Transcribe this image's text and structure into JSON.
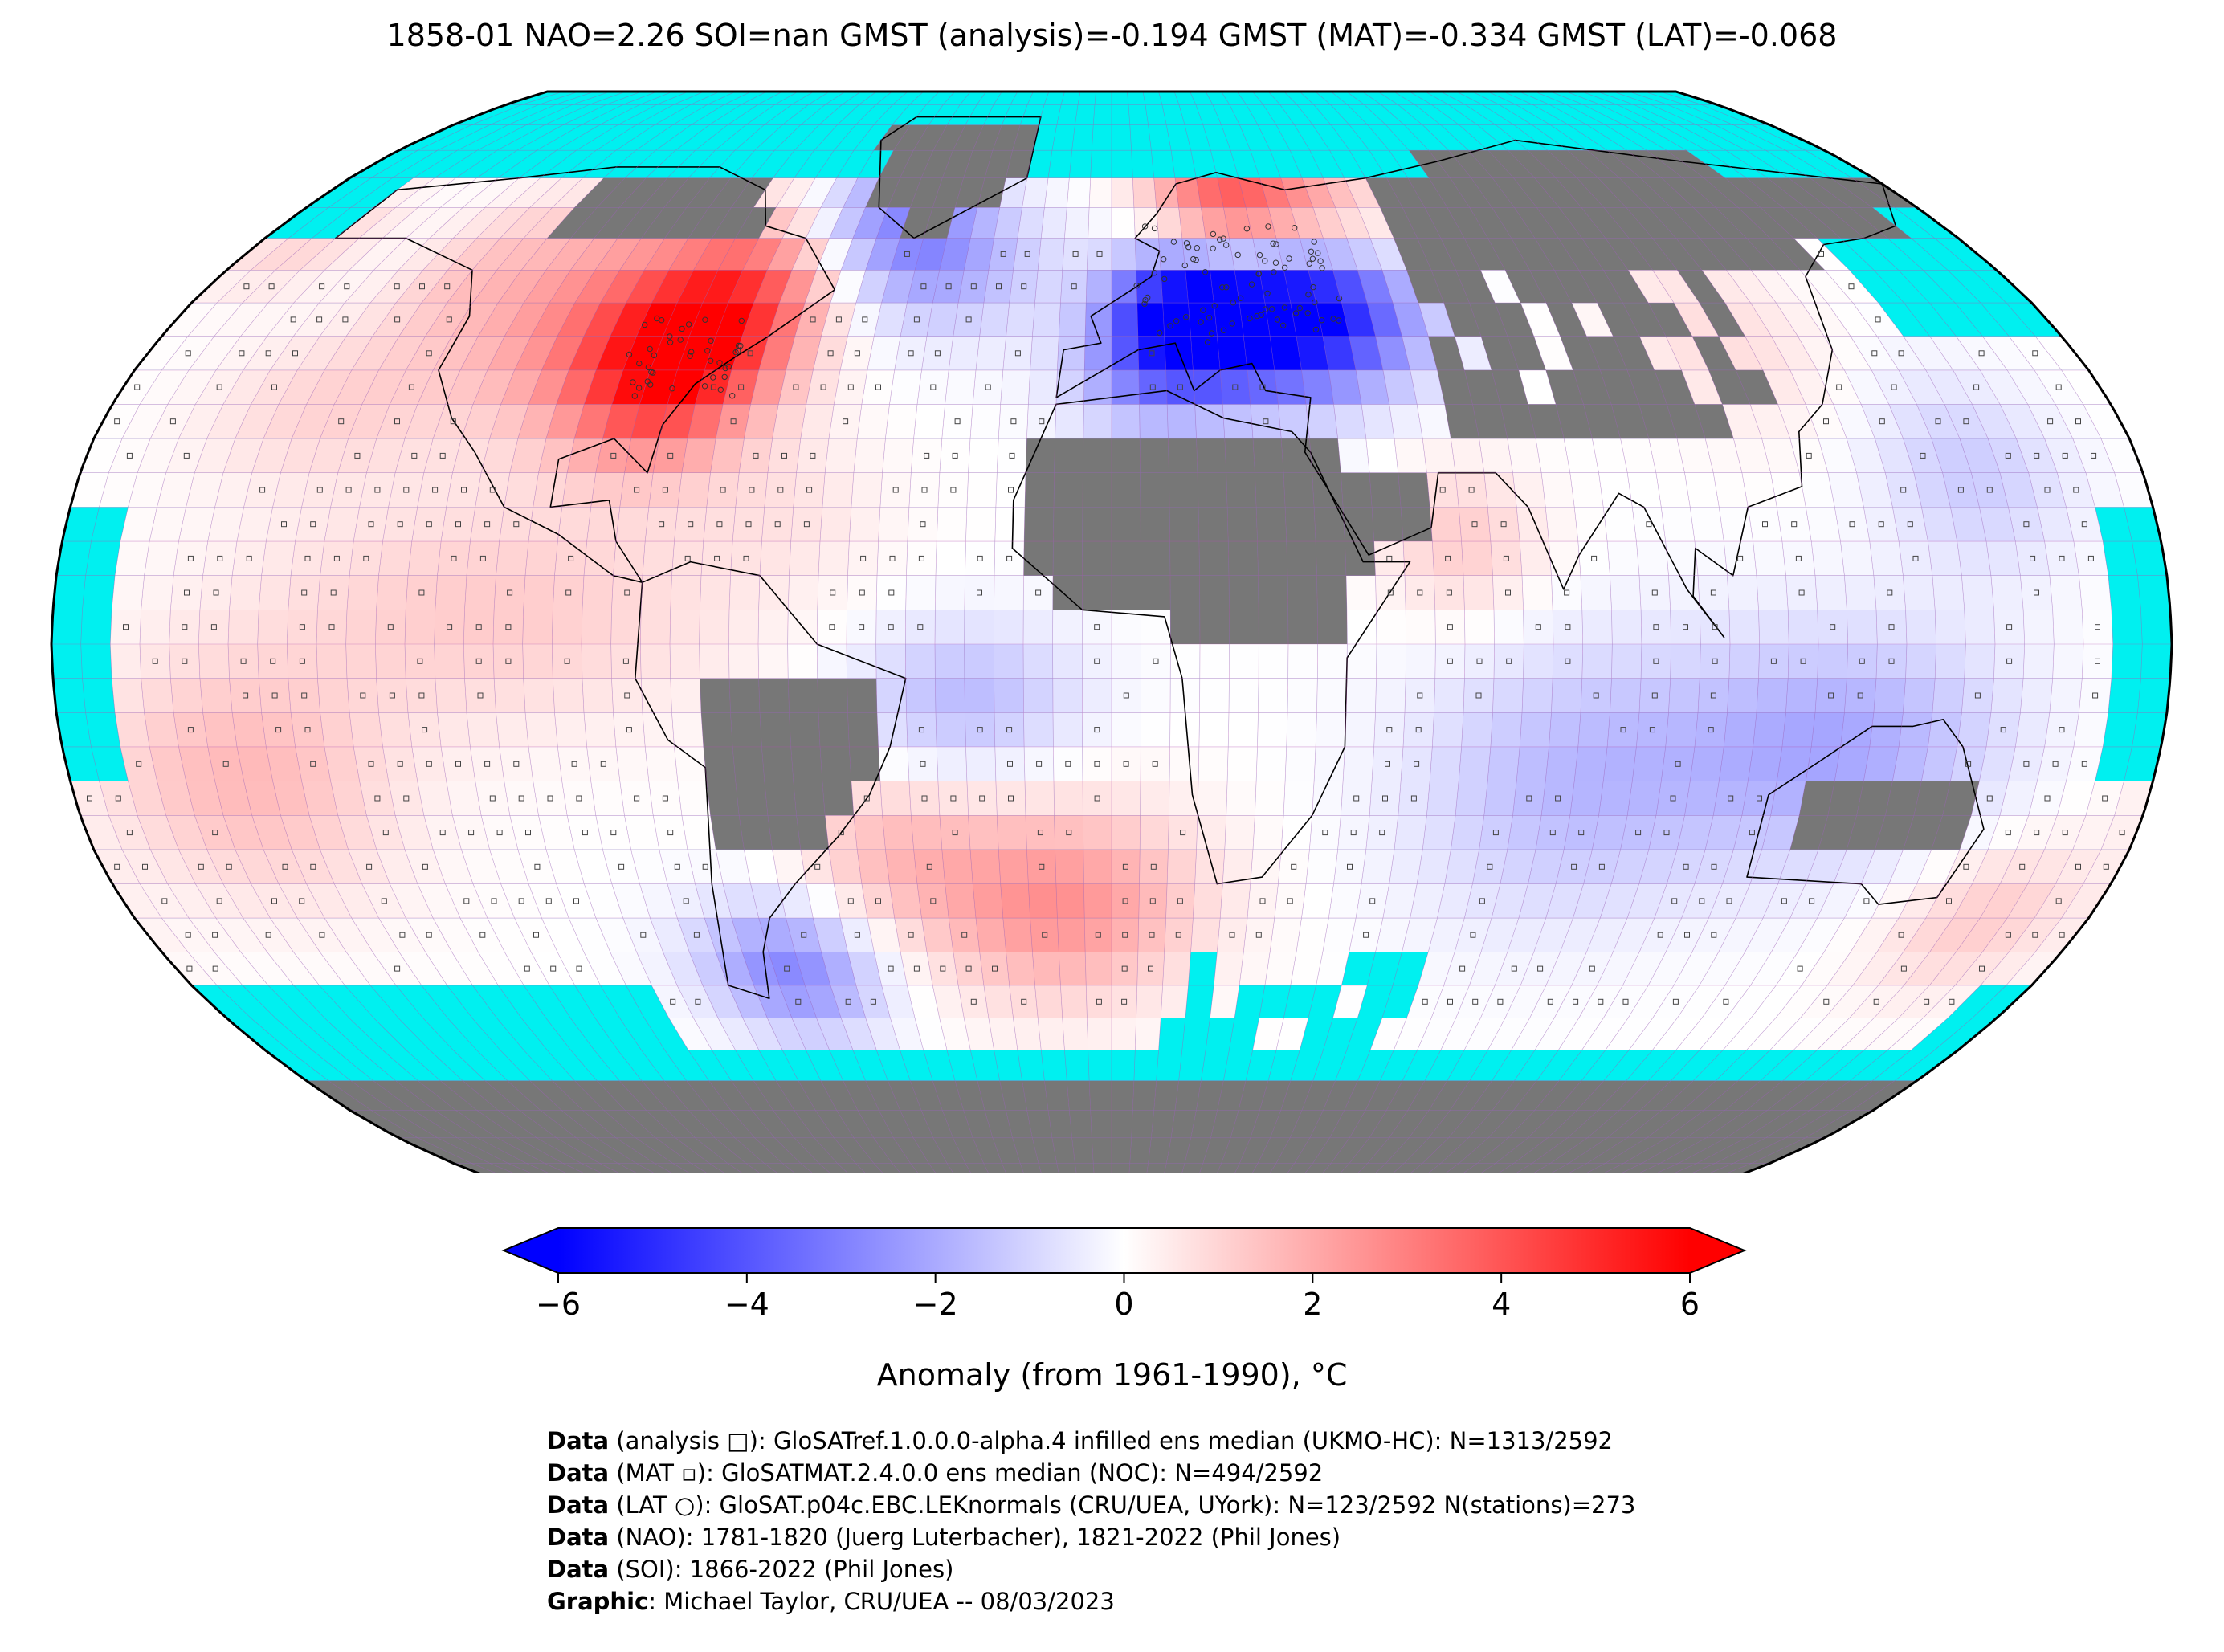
{
  "title": "1858-01 NAO=2.26 SOI=nan GMST (analysis)=-0.194 GMST (MAT)=-0.334 GMST (LAT)=-0.068",
  "projection": "Robinson",
  "colors": {
    "ocean_no_data": "#00f0f0",
    "land_no_data": "#777777",
    "cold": "#0000ff",
    "neutral": "#ffffff",
    "warm": "#ff0000",
    "grid": "#b050b0",
    "coast": "#000000"
  },
  "colorbar": {
    "min": -6,
    "max": 6,
    "ticks": [
      "−6",
      "−4",
      "−2",
      "0",
      "2",
      "4",
      "6"
    ],
    "tick_values": [
      -6,
      -4,
      -2,
      0,
      2,
      4,
      6
    ],
    "label": "Anomaly (from 1961-1990), °C",
    "extend": "both"
  },
  "map_data": {
    "grid_resolution_deg": 5,
    "anomaly_regions": [
      {
        "name": "eastern North America",
        "anomaly": 5.5
      },
      {
        "name": "central/eastern Europe and Black Sea",
        "anomaly": -5.0
      },
      {
        "name": "Scandinavia",
        "anomaly": 3.5
      },
      {
        "name": "South Atlantic",
        "anomaly": 2.5
      },
      {
        "name": "southern South America",
        "anomaly": -2.5
      },
      {
        "name": "Indian Ocean to Australia",
        "anomaly": -1.8
      },
      {
        "name": "eastern tropical Pacific",
        "anomaly": 1.2
      }
    ]
  },
  "credits": [
    {
      "bold": "Data",
      "text": " (analysis □): GloSATref.1.0.0.0-alpha.4 infilled ens median (UKMO-HC): N=1313/2592"
    },
    {
      "bold": "Data",
      "text": " (MAT ▫): GloSATMAT.2.4.0.0 ens median (NOC): N=494/2592"
    },
    {
      "bold": "Data",
      "text": " (LAT ○): GloSAT.p04c.EBC.LEKnormals (CRU/UEA, UYork): N=123/2592 N(stations)=273"
    },
    {
      "bold": "Data",
      "text": " (NAO): 1781-1820 (Juerg Luterbacher), 1821-2022 (Phil Jones)"
    },
    {
      "bold": "Data",
      "text": " (SOI): 1866-2022 (Phil Jones)"
    },
    {
      "bold": "Graphic",
      "text": ": Michael Taylor, CRU/UEA -- 08/03/2023"
    }
  ]
}
